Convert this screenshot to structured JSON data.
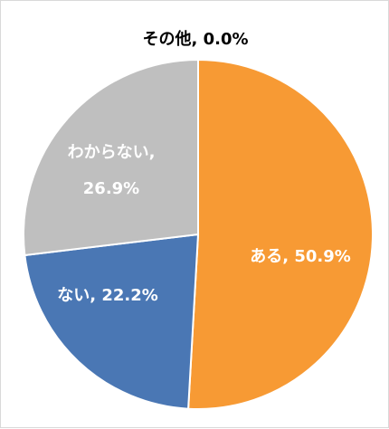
{
  "chart_data": {
    "type": "pie",
    "title": "",
    "slices": [
      {
        "label": "ある",
        "value": 50.9,
        "display": "ある, 50.9%",
        "color": "#f79a34"
      },
      {
        "label": "ない",
        "value": 22.2,
        "display": "ない, 22.2%",
        "color": "#4a77b4"
      },
      {
        "label": "わからない",
        "value": 26.9,
        "display": "わからない,",
        "display_value": "26.9%",
        "color": "#bfbfbf"
      },
      {
        "label": "その他",
        "value": 0.0,
        "display": "その他, 0.0%",
        "color": "#ffc000"
      }
    ],
    "start_angle_deg": 0,
    "direction": "clockwise",
    "label_colors": {
      "inside": "#ffffff",
      "outside": "#000000"
    }
  }
}
